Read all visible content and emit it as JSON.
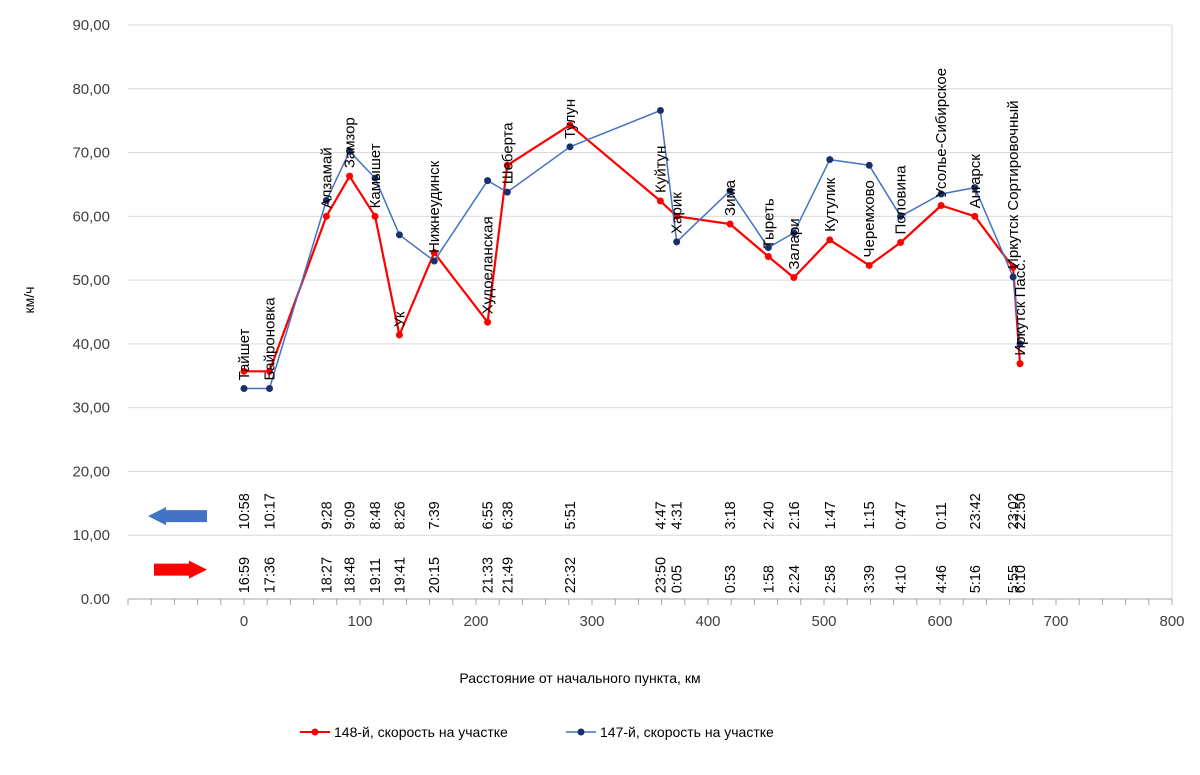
{
  "chart_data": {
    "type": "line",
    "title": "",
    "xlabel": "Расстояние от начального пункта, км",
    "ylabel": "км/ч",
    "xlim": [
      -100,
      800
    ],
    "ylim": [
      0,
      90
    ],
    "x_ticks": [
      "0",
      "100",
      "200",
      "300",
      "400",
      "500",
      "600",
      "700",
      "800"
    ],
    "y_ticks": [
      "0.00",
      "10,00",
      "20,00",
      "30,00",
      "40,00",
      "50,00",
      "60,00",
      "70,00",
      "80,00",
      "90,00"
    ],
    "grid": "horizontal",
    "legend_position": "bottom",
    "series": [
      {
        "name": "148-й, скорость на участке",
        "color": "#ff0000",
        "x": [
          0,
          22,
          71,
          91,
          113,
          134,
          164,
          210,
          227,
          281,
          359,
          373,
          419,
          452,
          474,
          505,
          539,
          566,
          601,
          630,
          663,
          669
        ],
        "values": [
          35.7,
          35.7,
          60.0,
          66.3,
          60.0,
          41.4,
          54.3,
          43.4,
          68.0,
          74.3,
          62.4,
          60.0,
          58.8,
          53.7,
          50.4,
          56.3,
          52.3,
          55.9,
          61.7,
          60.0,
          52.0,
          36.9
        ]
      },
      {
        "name": "147-й, скорость на участке",
        "color": "#1f4e9a",
        "x": [
          0,
          22,
          71,
          91,
          113,
          134,
          164,
          210,
          227,
          281,
          359,
          373,
          419,
          452,
          474,
          505,
          539,
          566,
          601,
          630,
          663,
          669
        ],
        "values": [
          33.0,
          33.0,
          62.5,
          70.2,
          66.0,
          57.1,
          53.0,
          65.6,
          63.8,
          70.9,
          76.6,
          56.0,
          64.0,
          55.1,
          57.4,
          68.9,
          68.0,
          60.0,
          63.5,
          64.5,
          50.5,
          40.0
        ]
      }
    ],
    "stations": [
      {
        "x": 0,
        "name": "Тайшет"
      },
      {
        "x": 22,
        "name": "Байроновка"
      },
      {
        "x": 71,
        "name": "Алзамай"
      },
      {
        "x": 91,
        "name": "Замзор"
      },
      {
        "x": 113,
        "name": "Камышет"
      },
      {
        "x": 134,
        "name": "Ук"
      },
      {
        "x": 164,
        "name": "Нижнеудинск"
      },
      {
        "x": 210,
        "name": "Худоеланская"
      },
      {
        "x": 227,
        "name": "Шеберта"
      },
      {
        "x": 281,
        "name": "Тулун"
      },
      {
        "x": 359,
        "name": "Куйтун"
      },
      {
        "x": 373,
        "name": "Харик"
      },
      {
        "x": 419,
        "name": "Зима"
      },
      {
        "x": 452,
        "name": "Тыреть"
      },
      {
        "x": 474,
        "name": "Залари"
      },
      {
        "x": 505,
        "name": "Кутулик"
      },
      {
        "x": 539,
        "name": "Черемхово"
      },
      {
        "x": 566,
        "name": "Половина"
      },
      {
        "x": 601,
        "name": "Усолье-Сибирское"
      },
      {
        "x": 630,
        "name": "Ангарск"
      },
      {
        "x": 663,
        "name": "Иркутск Сортировочный"
      },
      {
        "x": 669,
        "name": "Иркутск Пасс."
      }
    ],
    "times_147": [
      {
        "x": 0,
        "t": "10:58"
      },
      {
        "x": 22,
        "t": "10:17"
      },
      {
        "x": 71,
        "t": "9:28"
      },
      {
        "x": 91,
        "t": "9:09"
      },
      {
        "x": 113,
        "t": "8:48"
      },
      {
        "x": 134,
        "t": "8:26"
      },
      {
        "x": 164,
        "t": "7:39"
      },
      {
        "x": 210,
        "t": "6:55"
      },
      {
        "x": 227,
        "t": "6:38"
      },
      {
        "x": 281,
        "t": "5:51"
      },
      {
        "x": 359,
        "t": "4:47"
      },
      {
        "x": 373,
        "t": "4:31"
      },
      {
        "x": 419,
        "t": "3:18"
      },
      {
        "x": 452,
        "t": "2:40"
      },
      {
        "x": 474,
        "t": "2:16"
      },
      {
        "x": 505,
        "t": "1:47"
      },
      {
        "x": 539,
        "t": "1:15"
      },
      {
        "x": 566,
        "t": "0:47"
      },
      {
        "x": 601,
        "t": "0:11"
      },
      {
        "x": 630,
        "t": "23:42"
      },
      {
        "x": 663,
        "t": "23:02"
      },
      {
        "x": 669,
        "t": "22:50"
      }
    ],
    "times_148": [
      {
        "x": 0,
        "t": "16:59"
      },
      {
        "x": 22,
        "t": "17:36"
      },
      {
        "x": 71,
        "t": "18:27"
      },
      {
        "x": 91,
        "t": "18:48"
      },
      {
        "x": 113,
        "t": "19:11"
      },
      {
        "x": 134,
        "t": "19:41"
      },
      {
        "x": 164,
        "t": "20:15"
      },
      {
        "x": 210,
        "t": "21:33"
      },
      {
        "x": 227,
        "t": "21:49"
      },
      {
        "x": 281,
        "t": "22:32"
      },
      {
        "x": 359,
        "t": "23:50"
      },
      {
        "x": 373,
        "t": "0:05"
      },
      {
        "x": 419,
        "t": "0:53"
      },
      {
        "x": 452,
        "t": "1:58"
      },
      {
        "x": 474,
        "t": "2:24"
      },
      {
        "x": 505,
        "t": "2:58"
      },
      {
        "x": 539,
        "t": "3:39"
      },
      {
        "x": 566,
        "t": "4:10"
      },
      {
        "x": 601,
        "t": "4:46"
      },
      {
        "x": 630,
        "t": "5:16"
      },
      {
        "x": 663,
        "t": "5:55"
      },
      {
        "x": 669,
        "t": "6:10"
      }
    ],
    "arrows": [
      {
        "direction": "left",
        "color": "#4472c4",
        "train": "147"
      },
      {
        "direction": "right",
        "color": "#ff0000",
        "train": "148"
      }
    ]
  }
}
